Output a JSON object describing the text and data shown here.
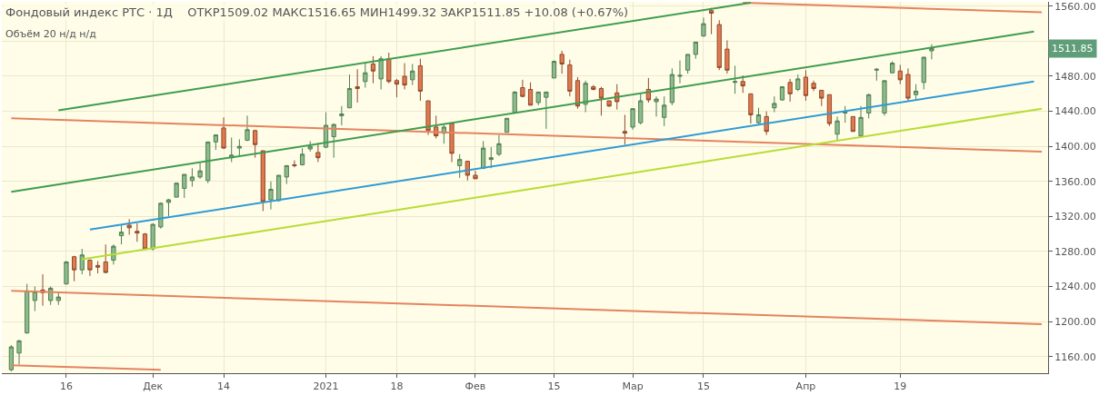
{
  "chart_data": {
    "type": "candlestick",
    "title": "Фондовый индекс РТС · 1Д",
    "subtitle": "ОТКР1509.02 МАКС1516.65 МИН1499.32 ЗАКР1511.85 +10.08 (+0.67%)",
    "annotations": [
      "Объём 20 н/д н/д",
      "1511.85"
    ],
    "categories": [
      null,
      null,
      null,
      null,
      null,
      null,
      null,
      "16",
      null,
      null,
      null,
      null,
      null,
      null,
      null,
      null,
      null,
      null,
      "Дек",
      null,
      null,
      null,
      null,
      null,
      null,
      null,
      null,
      "14",
      null,
      null,
      null,
      null,
      null,
      null,
      null,
      null,
      null,
      null,
      null,
      null,
      "2021",
      null,
      null,
      null,
      null,
      null,
      null,
      null,
      null,
      "18",
      null,
      null,
      null,
      null,
      null,
      null,
      null,
      null,
      null,
      "Фев",
      null,
      null,
      null,
      null,
      null,
      null,
      null,
      null,
      null,
      "15",
      null,
      null,
      null,
      null,
      null,
      null,
      null,
      null,
      null,
      "Мар",
      null,
      null,
      null,
      null,
      null,
      null,
      null,
      null,
      "15",
      null,
      null,
      null,
      null,
      null,
      null,
      null,
      null,
      null,
      null,
      null,
      null,
      "Апр",
      null,
      null,
      null,
      null,
      null,
      null,
      null,
      null,
      null,
      null,
      null,
      "19",
      null,
      null,
      null,
      null,
      null,
      null,
      null,
      null,
      null,
      null,
      null,
      null,
      null,
      null,
      null,
      null,
      null,
      null
    ],
    "ohlc": [
      [
        1145,
        1173,
        1143,
        1171
      ],
      [
        1164,
        1179,
        1151,
        1178
      ],
      [
        1187,
        1243,
        1186,
        1235
      ],
      [
        1224,
        1240,
        1212,
        1234
      ],
      [
        1236,
        1254,
        1218,
        1233
      ],
      [
        1224,
        1240,
        1219,
        1238
      ],
      [
        1224,
        1234,
        1219,
        1228
      ],
      [
        1243,
        1269,
        1242,
        1268
      ],
      [
        1274,
        1275,
        1246,
        1259
      ],
      [
        1259,
        1283,
        1254,
        1276
      ],
      [
        1270,
        1271,
        1252,
        1259
      ],
      [
        1264,
        1269,
        1255,
        1262
      ],
      [
        1268,
        1288,
        1255,
        1256
      ],
      [
        1270,
        1288,
        1265,
        1286
      ],
      [
        1298,
        1310,
        1288,
        1302
      ],
      [
        1310,
        1317,
        1299,
        1307
      ],
      [
        1303,
        1312,
        1291,
        1301
      ],
      [
        1300,
        1301,
        1282,
        1283
      ],
      [
        1283,
        1312,
        1281,
        1311
      ],
      [
        1308,
        1336,
        1306,
        1335
      ],
      [
        1336,
        1340,
        1320,
        1339
      ],
      [
        1342,
        1358,
        1342,
        1358
      ],
      [
        1352,
        1368,
        1341,
        1368
      ],
      [
        1361,
        1375,
        1354,
        1365
      ],
      [
        1365,
        1381,
        1363,
        1372
      ],
      [
        1361,
        1405,
        1358,
        1405
      ],
      [
        1405,
        1413,
        1396,
        1413
      ],
      [
        1421,
        1433,
        1397,
        1398
      ],
      [
        1387,
        1410,
        1382,
        1390
      ],
      [
        1398,
        1408,
        1389,
        1400
      ],
      [
        1407,
        1435,
        1406,
        1419
      ],
      [
        1418,
        1419,
        1387,
        1402
      ],
      [
        1395,
        1395,
        1326,
        1337
      ],
      [
        1339,
        1360,
        1328,
        1351
      ],
      [
        1338,
        1367,
        1337,
        1367
      ],
      [
        1365,
        1378,
        1357,
        1378
      ],
      [
        1379,
        1384,
        1376,
        1378
      ],
      [
        1379,
        1398,
        1378,
        1391
      ],
      [
        1397,
        1406,
        1394,
        1400
      ],
      [
        1393,
        1404,
        1382,
        1387
      ],
      [
        1399,
        1439,
        1398,
        1424
      ],
      [
        1411,
        1426,
        1387,
        1425
      ],
      [
        1435,
        1446,
        1424,
        1437
      ],
      [
        1444,
        1482,
        1444,
        1466
      ],
      [
        1468,
        1488,
        1450,
        1466
      ],
      [
        1474,
        1495,
        1467,
        1484
      ],
      [
        1494,
        1503,
        1472,
        1486
      ],
      [
        1477,
        1503,
        1465,
        1500
      ],
      [
        1500,
        1507,
        1472,
        1474
      ],
      [
        1475,
        1477,
        1456,
        1471
      ],
      [
        1480,
        1495,
        1465,
        1470
      ],
      [
        1476,
        1494,
        1470,
        1486
      ],
      [
        1492,
        1500,
        1452,
        1463
      ],
      [
        1452,
        1452,
        1413,
        1418
      ],
      [
        1422,
        1435,
        1409,
        1412
      ],
      [
        1415,
        1426,
        1403,
        1422
      ],
      [
        1426,
        1427,
        1382,
        1392
      ],
      [
        1378,
        1391,
        1364,
        1385
      ],
      [
        1383,
        1383,
        1361,
        1367
      ],
      [
        1367,
        1372,
        1363,
        1363
      ],
      [
        1375,
        1406,
        1374,
        1398
      ],
      [
        1385,
        1399,
        1375,
        1387
      ],
      [
        1391,
        1413,
        1389,
        1403
      ],
      [
        1416,
        1432,
        1416,
        1432
      ],
      [
        1439,
        1463,
        1439,
        1462
      ],
      [
        1467,
        1476,
        1456,
        1457
      ],
      [
        1465,
        1473,
        1447,
        1447
      ],
      [
        1450,
        1462,
        1447,
        1462
      ],
      [
        1456,
        1462,
        1420,
        1462
      ],
      [
        1478,
        1498,
        1478,
        1497
      ],
      [
        1505,
        1509,
        1483,
        1494
      ],
      [
        1493,
        1499,
        1457,
        1463
      ],
      [
        1475,
        1479,
        1443,
        1446
      ],
      [
        1448,
        1475,
        1439,
        1472
      ],
      [
        1468,
        1470,
        1464,
        1465
      ],
      [
        1466,
        1468,
        1435,
        1455
      ],
      [
        1452,
        1452,
        1445,
        1446
      ],
      [
        1461,
        1471,
        1442,
        1451
      ],
      [
        1417,
        1436,
        1402,
        1415
      ],
      [
        1422,
        1443,
        1419,
        1443
      ],
      [
        1427,
        1460,
        1425,
        1452
      ],
      [
        1465,
        1478,
        1450,
        1453
      ],
      [
        1451,
        1457,
        1434,
        1454
      ],
      [
        1433,
        1457,
        1423,
        1447
      ],
      [
        1450,
        1489,
        1447,
        1482
      ],
      [
        1480,
        1498,
        1472,
        1481
      ],
      [
        1487,
        1505,
        1483,
        1505
      ],
      [
        1505,
        1519,
        1500,
        1519
      ],
      [
        1526,
        1547,
        1525,
        1540
      ],
      [
        1555,
        1558,
        1528,
        1552
      ],
      [
        1539,
        1544,
        1487,
        1490
      ],
      [
        1511,
        1521,
        1483,
        1487
      ],
      [
        1473,
        1492,
        1460,
        1474
      ],
      [
        1474,
        1481,
        1461,
        1469
      ],
      [
        1460,
        1460,
        1426,
        1436
      ],
      [
        1427,
        1444,
        1425,
        1436
      ],
      [
        1434,
        1440,
        1413,
        1417
      ],
      [
        1444,
        1457,
        1439,
        1449
      ],
      [
        1453,
        1468,
        1452,
        1468
      ],
      [
        1473,
        1477,
        1451,
        1460
      ],
      [
        1465,
        1482,
        1463,
        1477
      ],
      [
        1479,
        1487,
        1452,
        1458
      ],
      [
        1472,
        1475,
        1463,
        1466
      ],
      [
        1464,
        1464,
        1446,
        1455
      ],
      [
        1459,
        1459,
        1423,
        1426
      ],
      [
        1414,
        1434,
        1406,
        1429
      ],
      [
        1438,
        1446,
        1427,
        1439
      ],
      [
        1434,
        1434,
        1417,
        1417
      ],
      [
        1412,
        1446,
        1411,
        1433
      ],
      [
        1438,
        1460,
        1432,
        1459
      ],
      [
        1487,
        1489,
        1475,
        1488
      ],
      [
        1438,
        1475,
        1435,
        1475
      ],
      [
        1484,
        1497,
        1483,
        1495
      ],
      [
        1486,
        1493,
        1471,
        1476
      ],
      [
        1482,
        1489,
        1451,
        1455
      ],
      [
        1459,
        1471,
        1452,
        1463
      ],
      [
        1473,
        1502,
        1465,
        1501.77
      ],
      [
        1509.02,
        1516.65,
        1499.32,
        1511.85
      ],
      null,
      null,
      null,
      null,
      null,
      null,
      null,
      null,
      null,
      null,
      null,
      null,
      null,
      null
    ],
    "series": [
      {
        "type": "line",
        "color": "#e5835f",
        "values": [
          null,
          null,
          null,
          null,
          null,
          null,
          null,
          null,
          null,
          null,
          null,
          null,
          null,
          null,
          null,
          null,
          null,
          null,
          null,
          null,
          null,
          null,
          null,
          null,
          null,
          null,
          null,
          null,
          null,
          null,
          null,
          null,
          null,
          null,
          null,
          null,
          null,
          null,
          null,
          null,
          null,
          null,
          null,
          null,
          null,
          null,
          null,
          null,
          null,
          null,
          null,
          null,
          null,
          null,
          null,
          null,
          null,
          null,
          null,
          null,
          null,
          null,
          null,
          null,
          null,
          null,
          null,
          null,
          null,
          null,
          null,
          null,
          null,
          null,
          null,
          null,
          null,
          null,
          null,
          null,
          null,
          null,
          null,
          null,
          null,
          null,
          null,
          null,
          null,
          null,
          null,
          null,
          null,
          1564,
          null,
          null,
          null,
          null,
          null,
          null,
          null,
          null,
          null,
          null,
          null,
          null,
          null,
          null,
          null,
          null,
          null,
          null,
          null,
          null,
          null,
          null,
          null,
          null,
          null,
          null,
          null,
          null,
          null,
          null,
          null,
          null,
          null,
          null,
          null,
          null,
          null,
          1553
        ]
      },
      {
        "type": "line",
        "color": "#e5835f",
        "values": [
          1432,
          null,
          null,
          null,
          null,
          null,
          null,
          null,
          null,
          null,
          null,
          null,
          null,
          null,
          null,
          null,
          null,
          null,
          null,
          null,
          null,
          null,
          null,
          null,
          null,
          null,
          null,
          null,
          null,
          null,
          null,
          null,
          null,
          null,
          null,
          null,
          null,
          null,
          null,
          null,
          null,
          null,
          null,
          null,
          null,
          null,
          null,
          null,
          null,
          null,
          null,
          null,
          null,
          null,
          null,
          null,
          null,
          null,
          null,
          null,
          null,
          null,
          null,
          null,
          null,
          null,
          null,
          null,
          null,
          null,
          null,
          null,
          null,
          null,
          null,
          null,
          null,
          null,
          null,
          null,
          null,
          null,
          null,
          null,
          null,
          null,
          null,
          null,
          null,
          null,
          null,
          null,
          null,
          null,
          null,
          null,
          null,
          null,
          null,
          null,
          null,
          null,
          null,
          null,
          null,
          null,
          null,
          null,
          null,
          null,
          null,
          null,
          null,
          null,
          null,
          null,
          null,
          null,
          null,
          null,
          null,
          null,
          null,
          null,
          null,
          null,
          null,
          null,
          null,
          null,
          null,
          1394
        ]
      },
      {
        "type": "line",
        "color": "#e5835f",
        "values": [
          1235,
          null,
          null,
          null,
          null,
          null,
          null,
          null,
          null,
          null,
          null,
          null,
          null,
          null,
          null,
          null,
          null,
          null,
          null,
          null,
          null,
          null,
          null,
          null,
          null,
          null,
          null,
          null,
          null,
          null,
          null,
          null,
          null,
          null,
          null,
          null,
          null,
          null,
          null,
          null,
          null,
          null,
          null,
          null,
          null,
          null,
          null,
          null,
          null,
          null,
          null,
          null,
          null,
          null,
          null,
          null,
          null,
          null,
          null,
          null,
          null,
          null,
          null,
          null,
          null,
          null,
          null,
          null,
          null,
          null,
          null,
          null,
          null,
          null,
          null,
          null,
          null,
          null,
          null,
          null,
          null,
          null,
          null,
          null,
          null,
          null,
          null,
          null,
          null,
          null,
          null,
          null,
          null,
          null,
          null,
          null,
          null,
          null,
          null,
          null,
          null,
          null,
          null,
          null,
          null,
          null,
          null,
          null,
          null,
          null,
          null,
          null,
          null,
          null,
          null,
          null,
          null,
          null,
          null,
          null,
          null,
          null,
          null,
          null,
          null,
          null,
          null,
          null,
          null,
          null,
          null,
          1197
        ]
      },
      {
        "type": "line",
        "color": "#e5835f",
        "values": [
          1150,
          null,
          null,
          null,
          null,
          null,
          null,
          null,
          null,
          null,
          null,
          null,
          null,
          null,
          null,
          null,
          null,
          null,
          null,
          1145,
          null,
          null,
          null,
          null,
          null,
          null,
          null,
          null,
          null,
          null,
          null,
          null,
          null,
          null,
          null,
          null,
          null,
          null,
          null,
          null,
          null,
          null,
          null,
          null,
          null,
          null,
          null,
          null,
          null,
          null,
          null,
          null,
          null,
          null,
          null,
          null,
          null,
          null,
          null,
          null,
          null,
          null,
          null,
          null,
          null,
          null,
          null,
          null,
          null,
          null,
          null,
          null,
          null,
          null,
          null,
          null,
          null,
          null,
          null,
          null,
          null,
          null,
          null,
          null,
          null,
          null,
          null,
          null,
          null,
          null,
          null,
          null,
          null,
          null,
          null,
          null,
          null,
          null,
          null,
          null,
          null,
          null,
          null,
          null,
          null,
          null,
          null,
          null,
          null,
          null,
          null,
          null,
          null,
          null,
          null,
          null,
          null,
          null,
          null,
          null,
          null,
          null,
          null,
          null,
          null,
          null,
          null,
          null,
          null,
          null,
          null,
          null
        ]
      },
      {
        "type": "line",
        "color": "#3f9d4f",
        "values": [
          null,
          null,
          null,
          null,
          null,
          null,
          1441,
          null,
          null,
          null,
          null,
          null,
          null,
          null,
          null,
          null,
          null,
          null,
          null,
          null,
          null,
          null,
          null,
          null,
          null,
          null,
          null,
          null,
          null,
          null,
          null,
          null,
          null,
          null,
          null,
          null,
          null,
          null,
          null,
          null,
          null,
          null,
          null,
          null,
          null,
          null,
          null,
          null,
          null,
          null,
          null,
          null,
          null,
          null,
          null,
          null,
          null,
          null,
          null,
          null,
          null,
          null,
          null,
          null,
          null,
          null,
          null,
          null,
          null,
          null,
          null,
          null,
          null,
          null,
          null,
          null,
          null,
          null,
          null,
          null,
          null,
          null,
          null,
          null,
          null,
          null,
          null,
          null,
          null,
          null,
          null,
          null,
          null,
          null,
          1564,
          null,
          null,
          null,
          null,
          null,
          null,
          null,
          null,
          null,
          null,
          null,
          null,
          null,
          null,
          null,
          null,
          null,
          null,
          null,
          null,
          null,
          null,
          null,
          null,
          null,
          null,
          null,
          null,
          null,
          null,
          null,
          null,
          null,
          null,
          null,
          null,
          null
        ]
      },
      {
        "type": "line",
        "color": "#3f9d4f",
        "values": [
          1348,
          null,
          null,
          null,
          null,
          null,
          null,
          null,
          null,
          null,
          null,
          null,
          null,
          null,
          null,
          null,
          null,
          null,
          null,
          null,
          null,
          null,
          null,
          null,
          null,
          null,
          null,
          null,
          null,
          null,
          null,
          null,
          null,
          null,
          null,
          null,
          null,
          null,
          null,
          null,
          null,
          null,
          null,
          null,
          null,
          null,
          null,
          null,
          null,
          null,
          null,
          null,
          null,
          null,
          null,
          null,
          null,
          null,
          null,
          null,
          null,
          null,
          null,
          null,
          null,
          null,
          null,
          null,
          null,
          null,
          null,
          null,
          null,
          null,
          null,
          null,
          null,
          null,
          null,
          null,
          null,
          null,
          null,
          null,
          null,
          null,
          null,
          null,
          null,
          null,
          null,
          null,
          null,
          null,
          null,
          null,
          null,
          null,
          null,
          null,
          null,
          null,
          null,
          null,
          null,
          null,
          null,
          null,
          null,
          null,
          null,
          null,
          null,
          null,
          null,
          null,
          null,
          null,
          null,
          null,
          null,
          null,
          null,
          null,
          null,
          null,
          null,
          null,
          null,
          null,
          1531,
          null
        ]
      },
      {
        "type": "line",
        "color": "#2e9bd6",
        "values": [
          null,
          null,
          null,
          null,
          null,
          null,
          null,
          null,
          null,
          null,
          1305,
          null,
          null,
          null,
          null,
          null,
          null,
          null,
          null,
          null,
          null,
          null,
          null,
          null,
          null,
          null,
          null,
          null,
          null,
          null,
          null,
          null,
          null,
          null,
          null,
          null,
          null,
          null,
          null,
          null,
          null,
          null,
          null,
          null,
          null,
          null,
          null,
          null,
          null,
          null,
          null,
          null,
          null,
          null,
          null,
          null,
          null,
          null,
          null,
          null,
          null,
          null,
          null,
          null,
          null,
          null,
          null,
          null,
          null,
          null,
          null,
          null,
          null,
          null,
          null,
          null,
          null,
          null,
          null,
          null,
          null,
          null,
          null,
          null,
          null,
          null,
          null,
          null,
          null,
          null,
          null,
          null,
          null,
          null,
          null,
          null,
          null,
          null,
          null,
          null,
          null,
          null,
          null,
          null,
          null,
          null,
          null,
          null,
          null,
          null,
          null,
          null,
          null,
          null,
          null,
          null,
          null,
          null,
          null,
          null,
          null,
          null,
          null,
          null,
          null,
          null,
          null,
          null,
          null,
          null,
          1474,
          null
        ]
      },
      {
        "type": "line",
        "color": "#b6dd33",
        "values": [
          null,
          null,
          null,
          null,
          null,
          null,
          null,
          null,
          null,
          1271,
          null,
          null,
          null,
          null,
          null,
          null,
          null,
          null,
          null,
          null,
          null,
          null,
          null,
          null,
          null,
          null,
          null,
          null,
          null,
          null,
          null,
          null,
          null,
          null,
          null,
          null,
          null,
          null,
          null,
          null,
          null,
          null,
          null,
          null,
          null,
          null,
          null,
          null,
          null,
          null,
          null,
          null,
          null,
          null,
          null,
          null,
          null,
          null,
          null,
          null,
          null,
          null,
          null,
          null,
          null,
          null,
          null,
          null,
          null,
          null,
          null,
          null,
          null,
          null,
          null,
          null,
          null,
          null,
          null,
          null,
          null,
          null,
          null,
          null,
          null,
          null,
          null,
          null,
          null,
          null,
          null,
          null,
          null,
          null,
          null,
          null,
          null,
          null,
          null,
          null,
          null,
          null,
          null,
          null,
          null,
          null,
          null,
          null,
          null,
          null,
          null,
          null,
          null,
          null,
          null,
          null,
          null,
          null,
          null,
          null,
          null,
          null,
          null,
          null,
          null,
          null,
          null,
          null,
          null,
          null,
          null,
          1443
        ]
      }
    ],
    "ylim": [
      1141,
      1565
    ],
    "yticks": [
      {
        "value": 1160,
        "label": "1160.00"
      },
      {
        "value": 1200,
        "label": "1200.00"
      },
      {
        "value": 1240,
        "label": "1240.00"
      },
      {
        "value": 1280,
        "label": "1280.00"
      },
      {
        "value": 1320,
        "label": "1320.00"
      },
      {
        "value": 1360,
        "label": "1360.00"
      },
      {
        "value": 1400,
        "label": "1400.00"
      },
      {
        "value": 1440,
        "label": "1440.00"
      },
      {
        "value": 1480,
        "label": "1480.00"
      },
      {
        "value": 1520,
        "label": null
      },
      {
        "value": 1560,
        "label": "1560.00"
      }
    ],
    "grid": true
  }
}
